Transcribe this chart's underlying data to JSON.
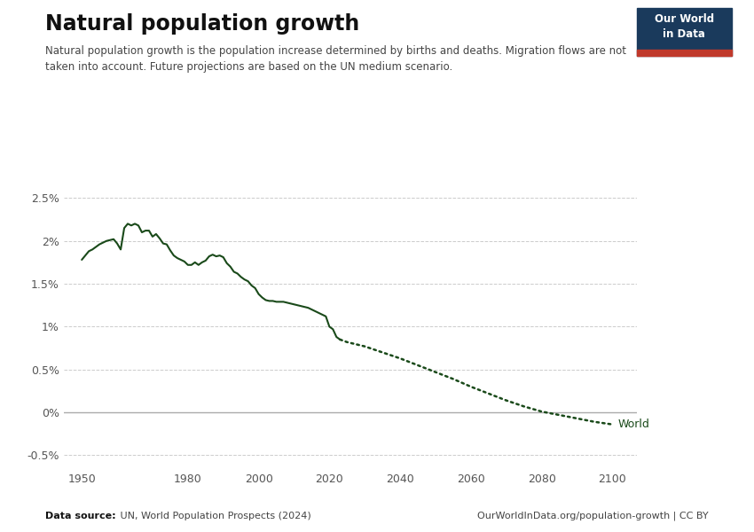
{
  "title": "Natural population growth",
  "subtitle": "Natural population growth is the population increase determined by births and deaths. Migration flows are not\ntaken into account. Future projections are based on the UN medium scenario.",
  "ylabel_ticks": [
    "-0.5%",
    "0%",
    "0.5%",
    "1%",
    "1.5%",
    "2%",
    "2.5%"
  ],
  "ytick_vals": [
    -0.005,
    0.0,
    0.005,
    0.01,
    0.015,
    0.02,
    0.025
  ],
  "xlim": [
    1945,
    2107
  ],
  "ylim": [
    -0.0065,
    0.027
  ],
  "xlabel_ticks": [
    1950,
    1980,
    2000,
    2020,
    2040,
    2060,
    2080,
    2100
  ],
  "line_color": "#1a4a1a",
  "bg_color": "#ffffff",
  "grid_color": "#cccccc",
  "data_source": "Data source: UN, World Population Prospects (2024)",
  "url_text": "OurWorldInData.org/population-growth | CC BY",
  "logo_bg": "#1a3a5c",
  "logo_red": "#c0392b",
  "logo_text": "Our World\nin Data",
  "world_label": "World",
  "historical_years": [
    1950,
    1951,
    1952,
    1953,
    1954,
    1955,
    1956,
    1957,
    1958,
    1959,
    1960,
    1961,
    1962,
    1963,
    1964,
    1965,
    1966,
    1967,
    1968,
    1969,
    1970,
    1971,
    1972,
    1973,
    1974,
    1975,
    1976,
    1977,
    1978,
    1979,
    1980,
    1981,
    1982,
    1983,
    1984,
    1985,
    1986,
    1987,
    1988,
    1989,
    1990,
    1991,
    1992,
    1993,
    1994,
    1995,
    1996,
    1997,
    1998,
    1999,
    2000,
    2001,
    2002,
    2003,
    2004,
    2005,
    2006,
    2007,
    2008,
    2009,
    2010,
    2011,
    2012,
    2013,
    2014,
    2015,
    2016,
    2017,
    2018,
    2019,
    2020,
    2021,
    2022,
    2023
  ],
  "historical_values": [
    0.0178,
    0.0183,
    0.0188,
    0.019,
    0.0193,
    0.0196,
    0.0198,
    0.02,
    0.0201,
    0.0202,
    0.0197,
    0.019,
    0.0215,
    0.022,
    0.0218,
    0.022,
    0.0218,
    0.021,
    0.0212,
    0.0212,
    0.0205,
    0.0208,
    0.0203,
    0.0197,
    0.0196,
    0.0189,
    0.0183,
    0.018,
    0.0178,
    0.0176,
    0.0172,
    0.0172,
    0.0175,
    0.0172,
    0.0175,
    0.0177,
    0.0182,
    0.0184,
    0.0182,
    0.0183,
    0.0181,
    0.0174,
    0.017,
    0.0164,
    0.0162,
    0.0158,
    0.0155,
    0.0153,
    0.0148,
    0.0145,
    0.0138,
    0.0134,
    0.0131,
    0.013,
    0.013,
    0.0129,
    0.0129,
    0.0129,
    0.0128,
    0.0127,
    0.0126,
    0.0125,
    0.0124,
    0.0123,
    0.0122,
    0.012,
    0.0118,
    0.0116,
    0.0114,
    0.0112,
    0.01,
    0.0097,
    0.0088,
    0.0085
  ],
  "projection_years": [
    2023,
    2025,
    2030,
    2035,
    2040,
    2045,
    2050,
    2055,
    2060,
    2065,
    2070,
    2075,
    2080,
    2085,
    2090,
    2095,
    2100
  ],
  "projection_values": [
    0.0085,
    0.0082,
    0.0077,
    0.007,
    0.0063,
    0.0055,
    0.0047,
    0.0039,
    0.003,
    0.0022,
    0.0014,
    0.0007,
    0.0001,
    -0.0003,
    -0.0007,
    -0.0011,
    -0.0014
  ]
}
